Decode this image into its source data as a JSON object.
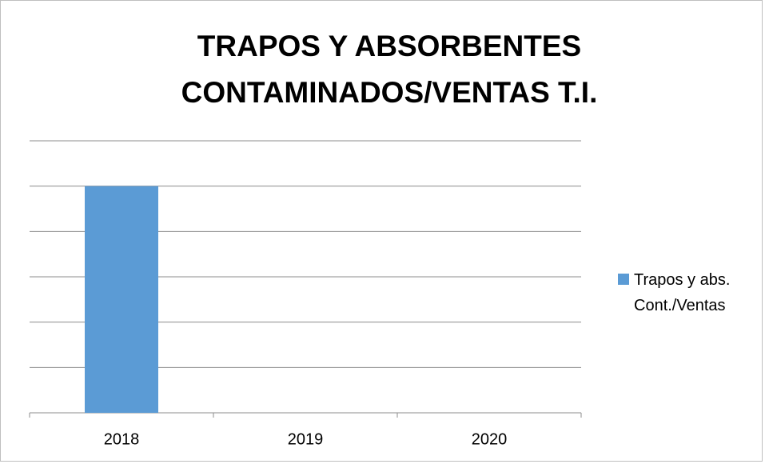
{
  "chart_data": {
    "type": "bar",
    "title": [
      "TRAPOS Y ABSORBENTES",
      "CONTAMINADOS/VENTAS T.I."
    ],
    "categories": [
      "2018",
      "2019",
      "2020"
    ],
    "series": [
      {
        "name": "Trapos y abs. Cont./Ventas",
        "color": "#5b9bd5",
        "values": [
          5,
          0,
          0
        ]
      }
    ],
    "ylim": [
      0,
      6
    ],
    "yticks": [
      0,
      1,
      2,
      3,
      4,
      5,
      6
    ],
    "grid": true,
    "legend": "right"
  }
}
